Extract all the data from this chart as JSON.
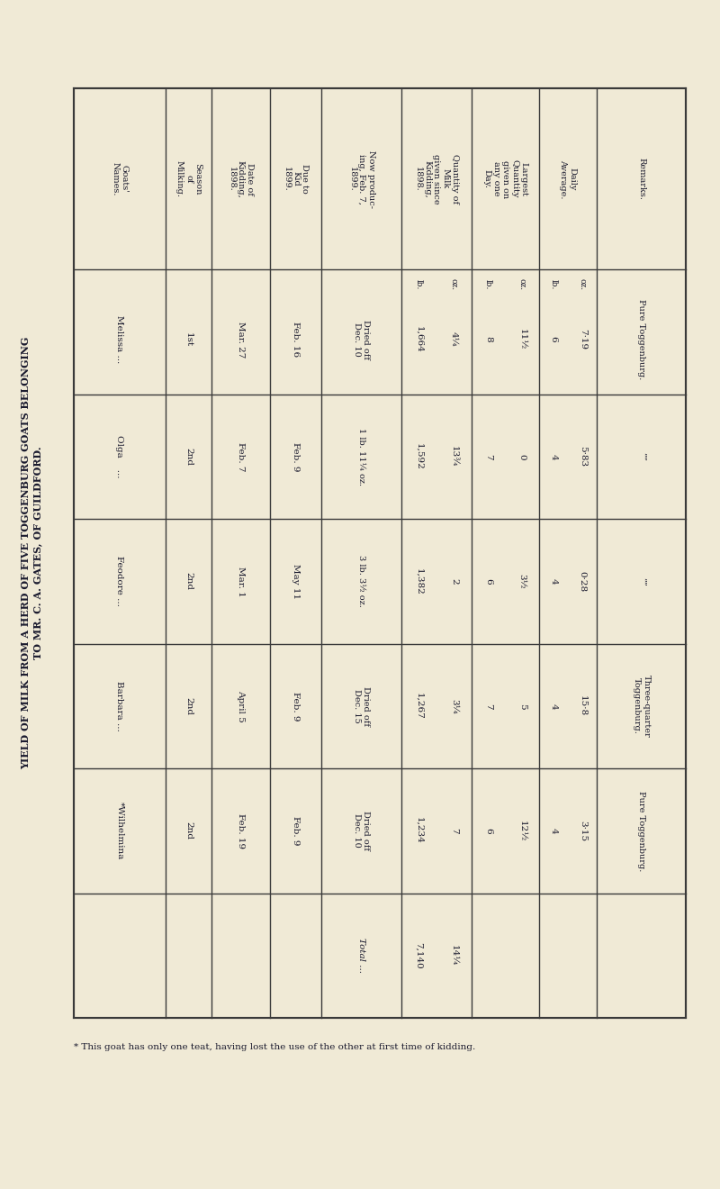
{
  "title_line1": "YIELD OF MILK FROM A HERD OF FIVE TOGGENBURG GOATS BELONGING",
  "title_line2": "TO MR. C. A. GATES, OF GUILDFORD.",
  "bg_color": "#f0ead6",
  "text_color": "#1a1a2e",
  "footnote": "* This goat has only one teat, having lost the use of the other at first time of kidding.",
  "headers": [
    "Goats'\nNames.",
    "Season\nof\nMilking.",
    "Date of\nKidding,\n1898.",
    "Due to\nKid\n1899.",
    "Now produc-\ning, Feb. 7,\n1899.",
    "Quantity of\nMilk\ngiven since\nKidding,\n1898.",
    "Largest\nQuantity\ngiven on\nany one\nDay.",
    "Daily\nAverage.",
    "Remarks."
  ],
  "rows": [
    [
      "Melissa ...",
      "1st",
      "Mar. 27",
      "Feb. 16",
      "Dried off\nDec. 10",
      "1,664",
      "4¼",
      "8",
      "11½",
      "6",
      "7·19",
      "Pure Toggenburg."
    ],
    [
      "Olga    ...",
      "2nd",
      "Feb. 7",
      "Feb. 9",
      "1 lb. 11¼ oz.",
      "1,592",
      "13¾",
      "7",
      "0",
      "4",
      "5·83",
      "””"
    ],
    [
      "Feodore ...",
      "2nd",
      "Mar. 1",
      "May 11",
      "3 lb. 3½ oz.",
      "1,382",
      "2",
      "6",
      "3½",
      "4",
      "0·28",
      "””"
    ],
    [
      "Barbara ...",
      "2nd",
      "April 5",
      "Feb. 9",
      "Dried off\nDec. 15",
      "1,267",
      "3¼",
      "7",
      "5",
      "4",
      "15·8",
      "Three-quarter\nToggenburg."
    ],
    [
      "*Wilhelmina",
      "2nd",
      "Feb. 19",
      "Feb. 9",
      "Dried off\nDec. 10",
      "1,234",
      "7",
      "6",
      "12½",
      "4",
      "3·15",
      "Pure Toggenburg."
    ]
  ],
  "total_lb": "7,140",
  "total_oz": "14¼"
}
